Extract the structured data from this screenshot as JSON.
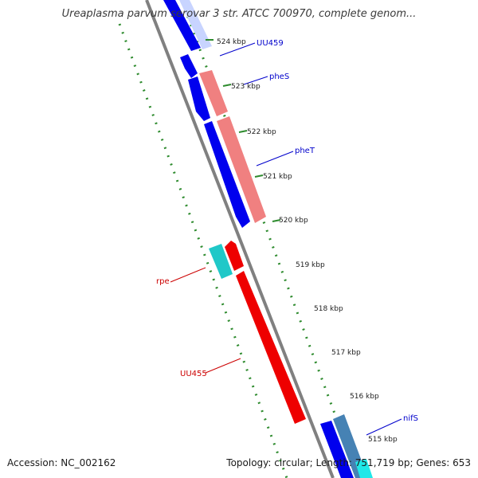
{
  "title": "Ureaplasma parvum serovar 3 str. ATCC 700970, complete genom...",
  "footer": {
    "accession": "Accession: NC_002162",
    "summary": "Topology: circular; Length: 751,719 bp; Genes: 653"
  },
  "ticks": [
    "524 kbp",
    "523 kbp",
    "522 kbp",
    "521 kbp",
    "520 kbp",
    "519 kbp",
    "518 kbp",
    "517 kbp",
    "516 kbp",
    "515 kbp"
  ],
  "genes": [
    "UU459",
    "pheS",
    "pheT",
    "rpe",
    "UU455",
    "nifS"
  ],
  "colors": {
    "forward_gene": "#0000ee",
    "reverse_gene": "#ee0000",
    "trna_synthetase": "#f08080",
    "rpe": "#20c8c8",
    "nifS": "#4682b4",
    "backbone": "#808080",
    "dotted_track": "#2e8b2e"
  }
}
